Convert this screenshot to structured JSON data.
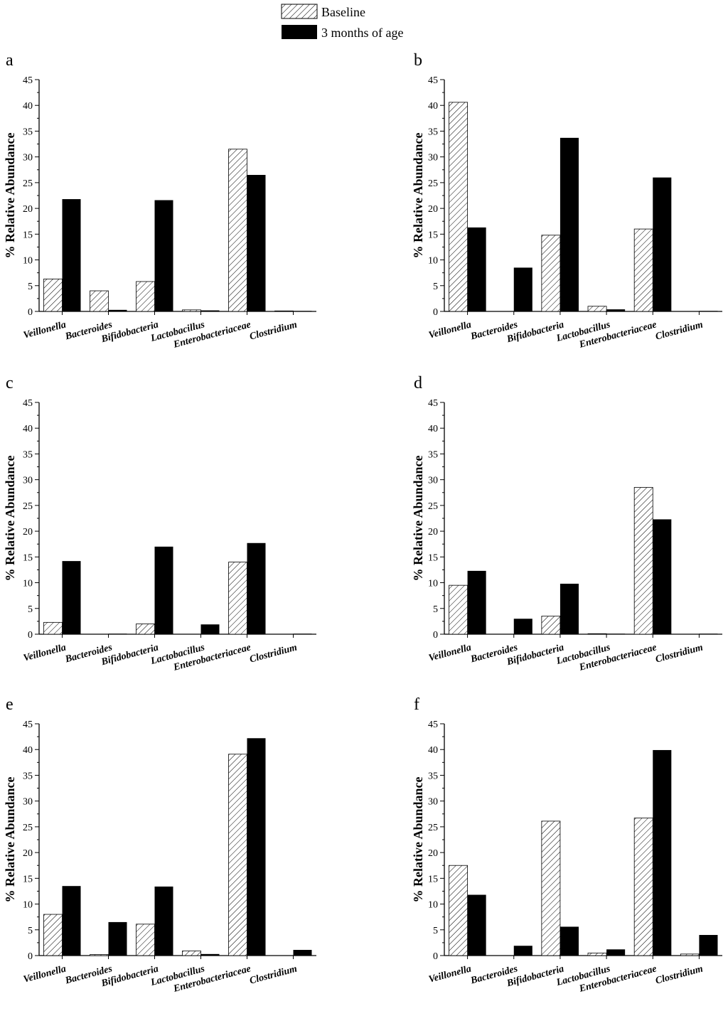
{
  "legend": {
    "baseline_label": "Baseline",
    "month3_label": "3 months of age"
  },
  "colors": {
    "baseline_fill": "hatched",
    "month3_fill": "#000000",
    "axis": "#000000"
  },
  "chart_data": [
    {
      "panel": "a",
      "type": "bar",
      "categories": [
        "Veillonella",
        "Bacteroides",
        "Bifidobacteria",
        "Lactobacillus",
        "Enterobacteriaceae",
        "Clostridium"
      ],
      "series": [
        {
          "name": "Baseline",
          "values": [
            6.3,
            4.0,
            5.8,
            0.3,
            31.5,
            0.1
          ]
        },
        {
          "name": "3 months of age",
          "values": [
            21.8,
            0.3,
            21.6,
            0.2,
            26.5,
            0.1
          ]
        }
      ],
      "ylabel": "% Relative Abundance",
      "ylim": [
        0,
        45
      ],
      "yticks": [
        0,
        5,
        10,
        15,
        20,
        25,
        30,
        35,
        40,
        45
      ]
    },
    {
      "panel": "b",
      "type": "bar",
      "categories": [
        "Veillonella",
        "Bacteroides",
        "Bifidobacteria",
        "Lactobacillus",
        "Enterobacteriaceae",
        "Clostridium"
      ],
      "series": [
        {
          "name": "Baseline",
          "values": [
            40.6,
            0.0,
            14.8,
            1.0,
            16.0,
            0.0
          ]
        },
        {
          "name": "3 months of age",
          "values": [
            16.3,
            8.5,
            33.7,
            0.4,
            26.0,
            0.1
          ]
        }
      ],
      "ylabel": "% Relative Abundance",
      "ylim": [
        0,
        45
      ],
      "yticks": [
        0,
        5,
        10,
        15,
        20,
        25,
        30,
        35,
        40,
        45
      ]
    },
    {
      "panel": "c",
      "type": "bar",
      "categories": [
        "Veillonella",
        "Bacteroides",
        "Bifidobacteria",
        "Lactobacillus",
        "Enterobacteriaceae",
        "Clostridium"
      ],
      "series": [
        {
          "name": "Baseline",
          "values": [
            2.3,
            0.0,
            2.0,
            0.0,
            14.0,
            0.0
          ]
        },
        {
          "name": "3 months of age",
          "values": [
            14.2,
            0.1,
            17.0,
            1.9,
            17.7,
            0.1
          ]
        }
      ],
      "ylabel": "% Relative Abundance",
      "ylim": [
        0,
        45
      ],
      "yticks": [
        0,
        5,
        10,
        15,
        20,
        25,
        30,
        35,
        40,
        45
      ]
    },
    {
      "panel": "d",
      "type": "bar",
      "categories": [
        "Veillonella",
        "Bacteroides",
        "Bifidobacteria",
        "Lactobacillus",
        "Enterobacteriaceae",
        "Clostridium"
      ],
      "series": [
        {
          "name": "Baseline",
          "values": [
            9.5,
            0.0,
            3.5,
            0.1,
            28.5,
            0.0
          ]
        },
        {
          "name": "3 months of age",
          "values": [
            12.3,
            3.0,
            9.8,
            0.1,
            22.3,
            0.1
          ]
        }
      ],
      "ylabel": "% Relative Abundance",
      "ylim": [
        0,
        45
      ],
      "yticks": [
        0,
        5,
        10,
        15,
        20,
        25,
        30,
        35,
        40,
        45
      ]
    },
    {
      "panel": "e",
      "type": "bar",
      "categories": [
        "Veillonella",
        "Bacteroides",
        "Bifidobacteria",
        "Lactobacillus",
        "Enterobacteriaceae",
        "Clostridium"
      ],
      "series": [
        {
          "name": "Baseline",
          "values": [
            8.0,
            0.2,
            6.1,
            0.9,
            39.1,
            0.0
          ]
        },
        {
          "name": "3 months of age",
          "values": [
            13.5,
            6.5,
            13.4,
            0.3,
            42.2,
            1.1
          ]
        }
      ],
      "ylabel": "% Relative Abundance",
      "ylim": [
        0,
        45
      ],
      "yticks": [
        0,
        5,
        10,
        15,
        20,
        25,
        30,
        35,
        40,
        45
      ]
    },
    {
      "panel": "f",
      "type": "bar",
      "categories": [
        "Veillonella",
        "Bacteroides",
        "Bifidobacteria",
        "Lactobacillus",
        "Enterobacteriaceae",
        "Clostridium"
      ],
      "series": [
        {
          "name": "Baseline",
          "values": [
            17.5,
            0.0,
            26.1,
            0.5,
            26.7,
            0.3
          ]
        },
        {
          "name": "3 months of age",
          "values": [
            11.8,
            1.9,
            5.6,
            1.2,
            39.9,
            4.0
          ]
        }
      ],
      "ylabel": "% Relative Abundance",
      "ylim": [
        0,
        45
      ],
      "yticks": [
        0,
        5,
        10,
        15,
        20,
        25,
        30,
        35,
        40,
        45
      ]
    }
  ]
}
